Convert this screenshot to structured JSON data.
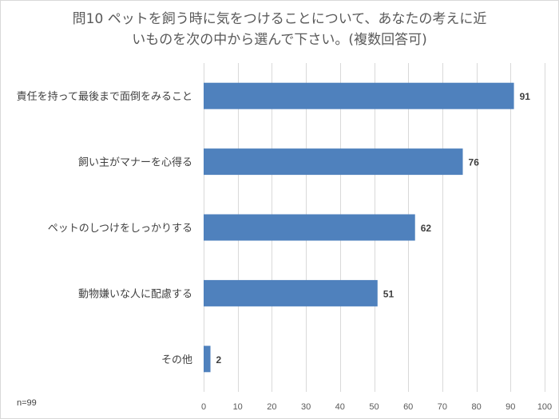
{
  "chart_data": {
    "type": "bar",
    "orientation": "horizontal",
    "title_lines": [
      "問10 ペットを飼う時に気をつけることについて、あなたの考えに近",
      "いものを次の中から選んで下さい。(複数回答可)"
    ],
    "categories": [
      "責任を持って最後まで面倒をみること",
      "飼い主がマナーを心得る",
      "ペットのしつけをしっかりする",
      "動物嫌いな人に配慮する",
      "その他"
    ],
    "values": [
      91,
      76,
      62,
      51,
      2
    ],
    "xlim": [
      0,
      100
    ],
    "x_ticks": [
      0,
      10,
      20,
      30,
      40,
      50,
      60,
      70,
      80,
      90,
      100
    ],
    "grid": true,
    "bar_color": "#4f81bd",
    "grid_color": "#d9d9d9",
    "data_labels": true,
    "note": "n=99"
  }
}
